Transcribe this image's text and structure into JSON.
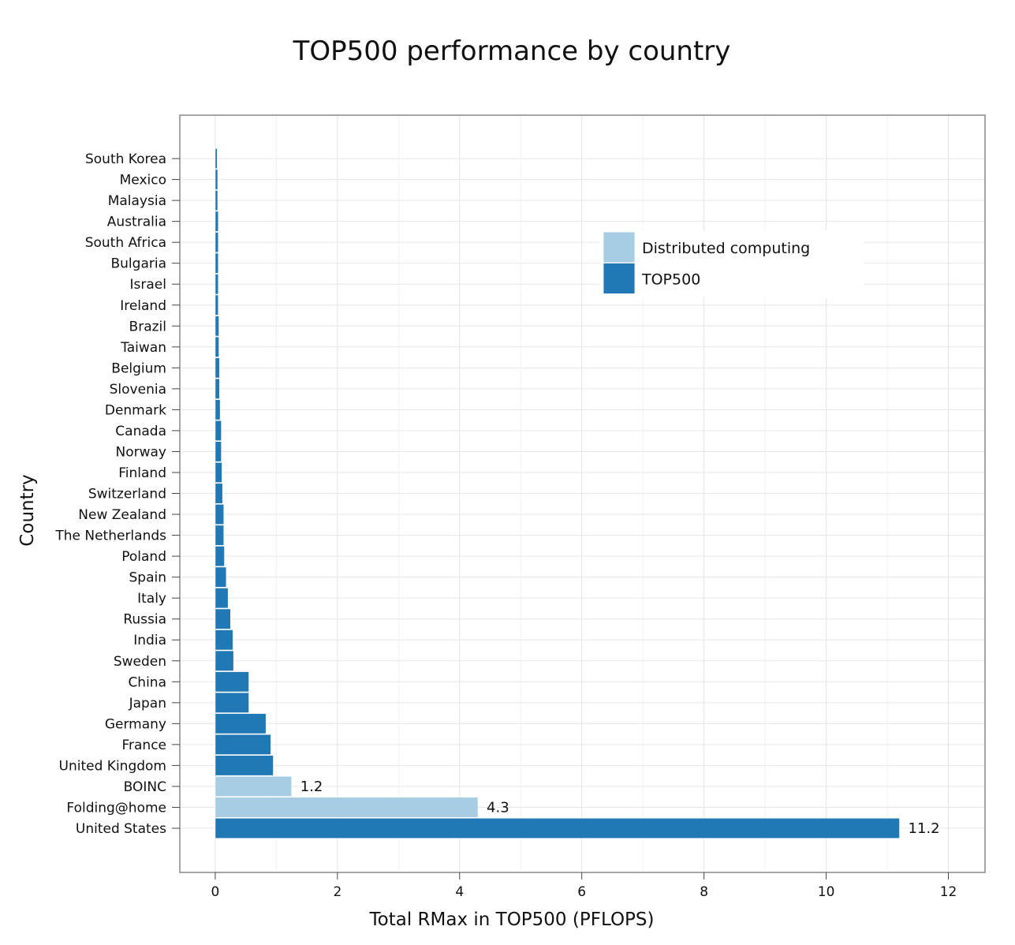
{
  "chart_data": {
    "type": "bar",
    "orientation": "horizontal",
    "title": "TOP500 performance by country",
    "xlabel": "Total RMax in TOP500 (PFLOPS)",
    "ylabel": "Country",
    "xlim": [
      -0.58,
      12.6
    ],
    "xticks": [
      0,
      2,
      4,
      6,
      8,
      10,
      12
    ],
    "grid": true,
    "legend_position": "top-right",
    "legend": [
      {
        "name": "Distributed computing",
        "color": "#a6cde3"
      },
      {
        "name": "TOP500",
        "color": "#2078b4"
      }
    ],
    "bars": [
      {
        "category": "United States",
        "value": 11.2,
        "series": "TOP500",
        "label": "11.2"
      },
      {
        "category": "Folding@home",
        "value": 4.3,
        "series": "Distributed computing",
        "label": "4.3"
      },
      {
        "category": "BOINC",
        "value": 1.25,
        "series": "Distributed computing",
        "label": "1.2"
      },
      {
        "category": "United Kingdom",
        "value": 0.95,
        "series": "TOP500",
        "label": ""
      },
      {
        "category": "France",
        "value": 0.91,
        "series": "TOP500",
        "label": ""
      },
      {
        "category": "Germany",
        "value": 0.83,
        "series": "TOP500",
        "label": ""
      },
      {
        "category": "Japan",
        "value": 0.55,
        "series": "TOP500",
        "label": ""
      },
      {
        "category": "China",
        "value": 0.55,
        "series": "TOP500",
        "label": ""
      },
      {
        "category": "Sweden",
        "value": 0.3,
        "series": "TOP500",
        "label": ""
      },
      {
        "category": "India",
        "value": 0.29,
        "series": "TOP500",
        "label": ""
      },
      {
        "category": "Russia",
        "value": 0.25,
        "series": "TOP500",
        "label": ""
      },
      {
        "category": "Italy",
        "value": 0.21,
        "series": "TOP500",
        "label": ""
      },
      {
        "category": "Spain",
        "value": 0.18,
        "series": "TOP500",
        "label": ""
      },
      {
        "category": "Poland",
        "value": 0.15,
        "series": "TOP500",
        "label": ""
      },
      {
        "category": "The Netherlands",
        "value": 0.14,
        "series": "TOP500",
        "label": ""
      },
      {
        "category": "New Zealand",
        "value": 0.14,
        "series": "TOP500",
        "label": ""
      },
      {
        "category": "Switzerland",
        "value": 0.12,
        "series": "TOP500",
        "label": ""
      },
      {
        "category": "Finland",
        "value": 0.11,
        "series": "TOP500",
        "label": ""
      },
      {
        "category": "Norway",
        "value": 0.1,
        "series": "TOP500",
        "label": ""
      },
      {
        "category": "Canada",
        "value": 0.1,
        "series": "TOP500",
        "label": ""
      },
      {
        "category": "Denmark",
        "value": 0.08,
        "series": "TOP500",
        "label": ""
      },
      {
        "category": "Slovenia",
        "value": 0.07,
        "series": "TOP500",
        "label": ""
      },
      {
        "category": "Belgium",
        "value": 0.07,
        "series": "TOP500",
        "label": ""
      },
      {
        "category": "Taiwan",
        "value": 0.06,
        "series": "TOP500",
        "label": ""
      },
      {
        "category": "Brazil",
        "value": 0.06,
        "series": "TOP500",
        "label": ""
      },
      {
        "category": "Ireland",
        "value": 0.05,
        "series": "TOP500",
        "label": ""
      },
      {
        "category": "Israel",
        "value": 0.05,
        "series": "TOP500",
        "label": ""
      },
      {
        "category": "Bulgaria",
        "value": 0.05,
        "series": "TOP500",
        "label": ""
      },
      {
        "category": "South Africa",
        "value": 0.05,
        "series": "TOP500",
        "label": ""
      },
      {
        "category": "Australia",
        "value": 0.05,
        "series": "TOP500",
        "label": ""
      },
      {
        "category": "Malaysia",
        "value": 0.04,
        "series": "TOP500",
        "label": ""
      },
      {
        "category": "Mexico",
        "value": 0.04,
        "series": "TOP500",
        "label": ""
      },
      {
        "category": "South Korea",
        "value": 0.03,
        "series": "TOP500",
        "label": ""
      }
    ]
  }
}
